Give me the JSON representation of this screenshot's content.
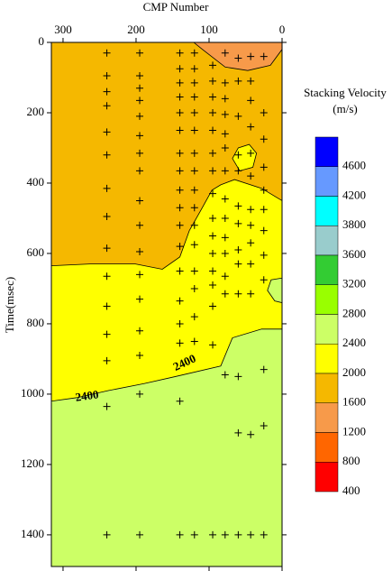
{
  "chart_data": {
    "type": "contour",
    "x_label": "CMP Number",
    "y_label": "Time(msec)",
    "xlim": [
      316,
      0
    ],
    "xticks": [
      300,
      200,
      100,
      0
    ],
    "ylim": [
      0,
      1490
    ],
    "yticks": [
      0,
      200,
      400,
      600,
      800,
      1000,
      1200,
      1400
    ],
    "regions": [
      {
        "color": "#ccff66",
        "points": [
          [
            316,
            0
          ],
          [
            0,
            0
          ],
          [
            0,
            1490
          ],
          [
            316,
            1490
          ]
        ]
      },
      {
        "color": "#ffff00",
        "points": [
          [
            316,
            0
          ],
          [
            0,
            0
          ],
          [
            0,
            815
          ],
          [
            28,
            815
          ],
          [
            68,
            840
          ],
          [
            84,
            920
          ],
          [
            146,
            950
          ],
          [
            189,
            970
          ],
          [
            238,
            990
          ],
          [
            281,
            1010
          ],
          [
            316,
            1020
          ]
        ]
      },
      {
        "color": "#f5b800",
        "points": [
          [
            316,
            0
          ],
          [
            0,
            0
          ],
          [
            0,
            450
          ],
          [
            28,
            415
          ],
          [
            65,
            390
          ],
          [
            84,
            405
          ],
          [
            96,
            420
          ],
          [
            112,
            480
          ],
          [
            127,
            535
          ],
          [
            140,
            610
          ],
          [
            164,
            645
          ],
          [
            201,
            630
          ],
          [
            263,
            630
          ],
          [
            316,
            635
          ]
        ]
      },
      {
        "color": "#f79a4a",
        "points": [
          [
            121,
            0
          ],
          [
            109,
            20
          ],
          [
            78,
            70
          ],
          [
            47,
            80
          ],
          [
            16,
            65
          ],
          [
            0,
            20
          ],
          [
            0,
            0
          ]
        ]
      },
      {
        "color": "#ffff00",
        "points": [
          [
            68,
            330
          ],
          [
            60,
            300
          ],
          [
            45,
            290
          ],
          [
            35,
            315
          ],
          [
            40,
            355
          ],
          [
            58,
            365
          ]
        ]
      },
      {
        "color": "#ccff66",
        "points": [
          [
            0,
            670
          ],
          [
            15,
            675
          ],
          [
            20,
            705
          ],
          [
            10,
            735
          ],
          [
            0,
            740
          ]
        ]
      }
    ],
    "contour_labels": [
      {
        "text": "2400",
        "x": 267,
        "y": 1008
      },
      {
        "text": "2400",
        "x": 133,
        "y": 913
      }
    ],
    "picks": {
      "x": [
        240,
        240,
        240,
        240,
        240,
        240,
        240,
        240,
        240,
        240,
        240,
        240,
        240,
        240,
        240,
        195,
        195,
        195,
        195,
        195,
        195,
        195,
        195,
        195,
        195,
        195,
        195,
        195,
        195,
        195,
        195,
        195,
        140,
        140,
        140,
        140,
        140,
        140,
        140,
        140,
        140,
        140,
        140,
        140,
        140,
        140,
        140,
        140,
        140,
        140,
        120,
        120,
        120,
        120,
        120,
        120,
        120,
        120,
        120,
        120,
        120,
        120,
        120,
        120,
        120,
        120,
        120,
        95,
        95,
        95,
        95,
        95,
        95,
        95,
        95,
        95,
        95,
        95,
        95,
        95,
        95,
        95,
        95,
        78,
        78,
        78,
        78,
        78,
        78,
        78,
        78,
        78,
        78,
        78,
        78,
        78,
        78,
        78,
        60,
        60,
        60,
        60,
        60,
        60,
        60,
        60,
        60,
        60,
        60,
        60,
        60,
        43,
        43,
        43,
        43,
        43,
        43,
        43,
        43,
        43,
        43,
        43,
        43,
        43,
        25,
        25,
        25,
        25,
        25,
        25,
        25,
        25,
        25,
        25,
        25,
        25
      ],
      "y": [
        30,
        95,
        140,
        180,
        255,
        320,
        415,
        495,
        585,
        665,
        750,
        830,
        905,
        1035,
        1400,
        30,
        95,
        130,
        165,
        210,
        265,
        315,
        365,
        450,
        520,
        595,
        660,
        730,
        820,
        890,
        1000,
        1400,
        30,
        75,
        115,
        155,
        200,
        250,
        315,
        365,
        420,
        470,
        520,
        580,
        650,
        735,
        800,
        855,
        1020,
        1400,
        30,
        75,
        115,
        155,
        200,
        250,
        315,
        365,
        420,
        470,
        520,
        575,
        650,
        700,
        780,
        850,
        1400,
        65,
        110,
        155,
        200,
        250,
        315,
        365,
        430,
        500,
        550,
        600,
        650,
        690,
        750,
        860,
        1400,
        30,
        115,
        160,
        205,
        260,
        300,
        365,
        445,
        500,
        555,
        600,
        665,
        715,
        945,
        1400,
        45,
        110,
        210,
        320,
        365,
        465,
        515,
        590,
        630,
        715,
        950,
        1110,
        1400,
        40,
        110,
        165,
        240,
        315,
        380,
        475,
        520,
        570,
        630,
        715,
        1115,
        1400,
        40,
        200,
        275,
        355,
        420,
        475,
        535,
        605,
        675,
        930,
        1090,
        1400
      ]
    },
    "colorbar": {
      "title": "Stacking Velocity",
      "unit": "(m/s)",
      "levels": [
        4600,
        4200,
        3800,
        3600,
        3200,
        2800,
        2400,
        2000,
        1600,
        1200,
        800,
        400
      ],
      "colors": [
        "#0000ff",
        "#6699ff",
        "#00ffff",
        "#99cccc",
        "#33cc33",
        "#99ff00",
        "#ccff66",
        "#ffff00",
        "#f5b800",
        "#f79a4a",
        "#ff6600",
        "#ff0000"
      ]
    }
  }
}
